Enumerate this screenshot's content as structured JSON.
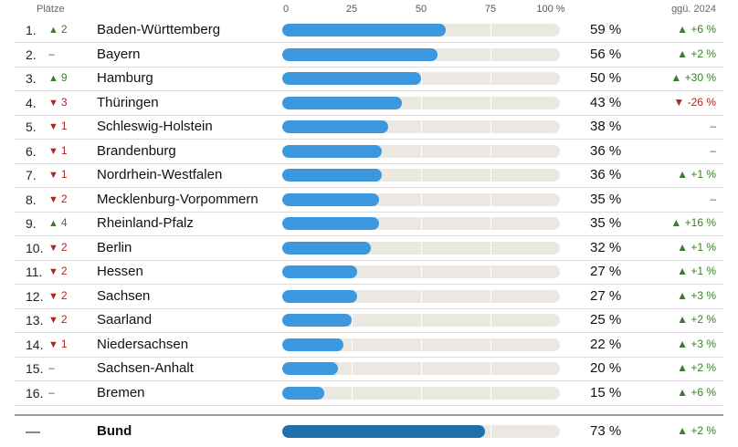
{
  "header": {
    "plaetze_label": "Plätze",
    "change_label": "ggü. 2024",
    "ticks": [
      "0",
      "25",
      "50",
      "75",
      "100 %"
    ]
  },
  "colors": {
    "bar": "#3b97de",
    "bar_total": "#1f6fa8",
    "track": "#ebe7e1",
    "up": "#3a7d2a",
    "down": "#b3261e"
  },
  "chart_data": {
    "type": "bar",
    "orientation": "horizontal",
    "xlim": [
      0,
      100
    ],
    "rows": [
      {
        "rank": "1.",
        "move_dir": "up",
        "move": "2",
        "name": "Baden-Württemberg",
        "value": 59,
        "value_label": "59 %",
        "change_dir": "up",
        "change": "+6 %"
      },
      {
        "rank": "2.",
        "move_dir": "none",
        "move": "–",
        "name": "Bayern",
        "value": 56,
        "value_label": "56 %",
        "change_dir": "up",
        "change": "+2 %"
      },
      {
        "rank": "3.",
        "move_dir": "up",
        "move": "9",
        "name": "Hamburg",
        "value": 50,
        "value_label": "50 %",
        "change_dir": "up",
        "change": "+30 %"
      },
      {
        "rank": "4.",
        "move_dir": "down",
        "move": "3",
        "name": "Thüringen",
        "value": 43,
        "value_label": "43 %",
        "change_dir": "down",
        "change": "-26 %"
      },
      {
        "rank": "5.",
        "move_dir": "down",
        "move": "1",
        "name": "Schleswig-Holstein",
        "value": 38,
        "value_label": "38 %",
        "change_dir": "none",
        "change": "–"
      },
      {
        "rank": "6.",
        "move_dir": "down",
        "move": "1",
        "name": "Brandenburg",
        "value": 36,
        "value_label": "36 %",
        "change_dir": "none",
        "change": "–"
      },
      {
        "rank": "7.",
        "move_dir": "down",
        "move": "1",
        "name": "Nordrhein-Westfalen",
        "value": 36,
        "value_label": "36 %",
        "change_dir": "up",
        "change": "+1 %"
      },
      {
        "rank": "8.",
        "move_dir": "down",
        "move": "2",
        "name": "Mecklenburg-Vorpommern",
        "value": 35,
        "value_label": "35 %",
        "change_dir": "none",
        "change": "–"
      },
      {
        "rank": "9.",
        "move_dir": "up",
        "move": "4",
        "name": "Rheinland-Pfalz",
        "value": 35,
        "value_label": "35 %",
        "change_dir": "up",
        "change": "+16 %"
      },
      {
        "rank": "10.",
        "move_dir": "down",
        "move": "2",
        "name": "Berlin",
        "value": 32,
        "value_label": "32 %",
        "change_dir": "up",
        "change": "+1 %"
      },
      {
        "rank": "11.",
        "move_dir": "down",
        "move": "2",
        "name": "Hessen",
        "value": 27,
        "value_label": "27 %",
        "change_dir": "up",
        "change": "+1 %"
      },
      {
        "rank": "12.",
        "move_dir": "down",
        "move": "2",
        "name": "Sachsen",
        "value": 27,
        "value_label": "27 %",
        "change_dir": "up",
        "change": "+3 %"
      },
      {
        "rank": "13.",
        "move_dir": "down",
        "move": "2",
        "name": "Saarland",
        "value": 25,
        "value_label": "25 %",
        "change_dir": "up",
        "change": "+2 %"
      },
      {
        "rank": "14.",
        "move_dir": "down",
        "move": "1",
        "name": "Niedersachsen",
        "value": 22,
        "value_label": "22 %",
        "change_dir": "up",
        "change": "+3 %"
      },
      {
        "rank": "15.",
        "move_dir": "none",
        "move": "–",
        "name": "Sachsen-Anhalt",
        "value": 20,
        "value_label": "20 %",
        "change_dir": "up",
        "change": "+2 %"
      },
      {
        "rank": "16.",
        "move_dir": "none",
        "move": "–",
        "name": "Bremen",
        "value": 15,
        "value_label": "15 %",
        "change_dir": "up",
        "change": "+6 %"
      }
    ],
    "total": {
      "rank": "—",
      "name": "Bund",
      "value": 73,
      "value_label": "73 %",
      "change_dir": "up",
      "change": "+2 %"
    }
  }
}
